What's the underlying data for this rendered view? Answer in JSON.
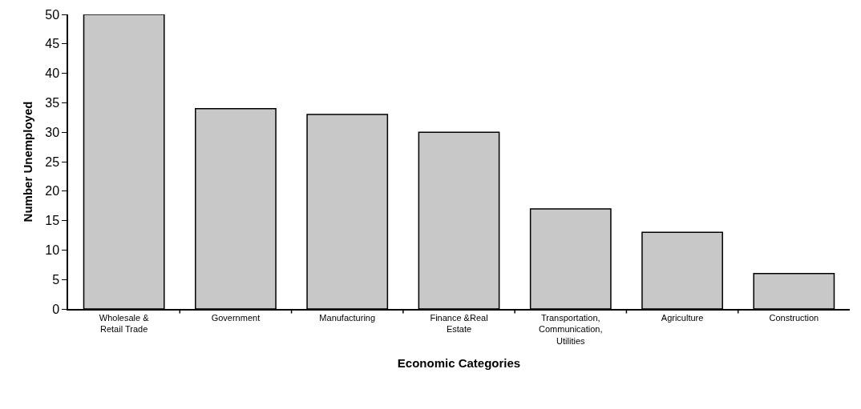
{
  "chart_data": {
    "type": "bar",
    "xlabel": "Economic Categories",
    "ylabel": "Number Unemployed",
    "categories": [
      "Wholesale &\nRetail Trade",
      "Government",
      "Manufacturing",
      "Finance &Real\nEstate",
      "Transportation,\nCommunication,\nUtilities",
      "Agriculture",
      "Construction"
    ],
    "values": [
      50,
      34,
      33,
      30,
      17,
      13,
      6
    ],
    "color": "#c8c8c8",
    "ylim": [
      0,
      50
    ],
    "yticks": [
      0,
      5,
      10,
      15,
      20,
      25,
      30,
      35,
      40,
      45,
      50
    ],
    "grid": false,
    "legend": false
  }
}
